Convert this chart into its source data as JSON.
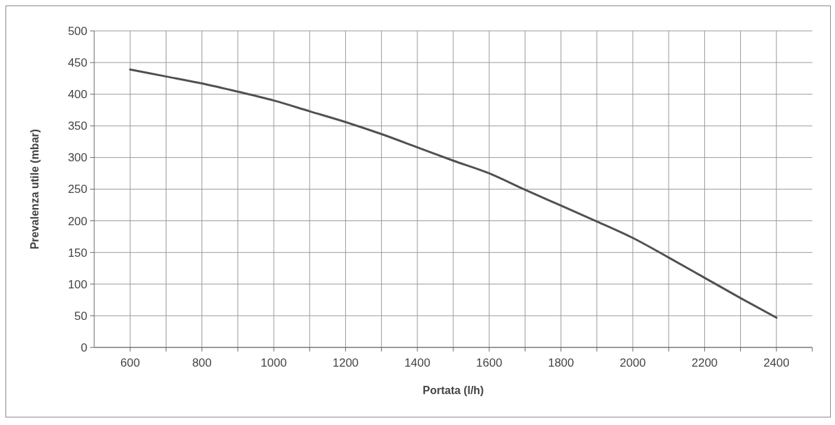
{
  "chart_data": {
    "type": "line",
    "xlabel": "Portata (l/h)",
    "ylabel": "Prevalenza utile (mbar)",
    "x": [
      600,
      700,
      800,
      900,
      1000,
      1100,
      1200,
      1300,
      1400,
      1500,
      1600,
      1700,
      1800,
      1900,
      2000,
      2100,
      2200,
      2300,
      2400
    ],
    "series": [
      {
        "color": "#505050",
        "values": [
          439,
          428,
          417,
          404,
          390,
          373,
          356,
          337,
          316,
          295,
          275,
          249,
          224,
          199,
          173,
          142,
          110,
          78,
          47
        ]
      }
    ],
    "xlim": [
      500,
      2500
    ],
    "xticks": [
      600,
      {
        "value": 700,
        "label": null
      },
      800,
      {
        "value": 900,
        "label": null
      },
      1000,
      {
        "value": 1100,
        "label": null
      },
      1200,
      {
        "value": 1300,
        "label": null
      },
      1400,
      {
        "value": 1500,
        "label": null
      },
      1600,
      {
        "value": 1700,
        "label": null
      },
      1800,
      {
        "value": 1900,
        "label": null
      },
      2000,
      {
        "value": 2100,
        "label": null
      },
      2200,
      {
        "value": 2300,
        "label": null
      },
      2400
    ],
    "ylim": [
      0,
      500
    ],
    "yticks": [
      0,
      50,
      100,
      150,
      200,
      250,
      300,
      350,
      400,
      450,
      500
    ],
    "grid": true,
    "marker": "none",
    "line_style": "solid"
  }
}
